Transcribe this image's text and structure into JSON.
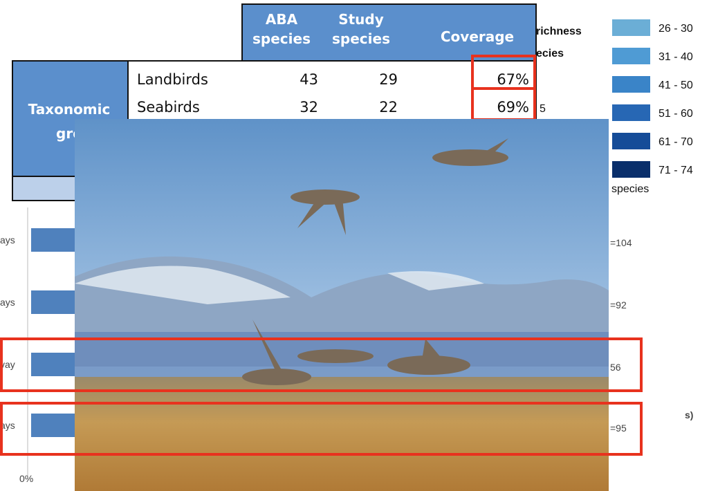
{
  "table": {
    "header": [
      "ABA species",
      "Study species",
      "Coverage"
    ],
    "group_label": [
      "Taxonomic",
      "gro"
    ],
    "rows": [
      [
        "Landbirds",
        "43",
        "29",
        "67%"
      ],
      [
        "Seabirds",
        "32",
        "22",
        "69%"
      ]
    ]
  },
  "legend": {
    "title_fragments": [
      "richness",
      "ecies"
    ],
    "items": [
      "26 - 30",
      "31 - 40",
      "41 - 50",
      "51 - 60",
      "61 - 70",
      "71 - 74"
    ],
    "fragments": [
      "5",
      "species"
    ]
  },
  "bar_chart": {
    "category_fragments": [
      "ays",
      "ays",
      "vay",
      "ays"
    ],
    "right_labels": [
      "=104",
      "=92",
      "56",
      "=95"
    ],
    "x_tick": "0%",
    "fragment": "s)"
  }
}
